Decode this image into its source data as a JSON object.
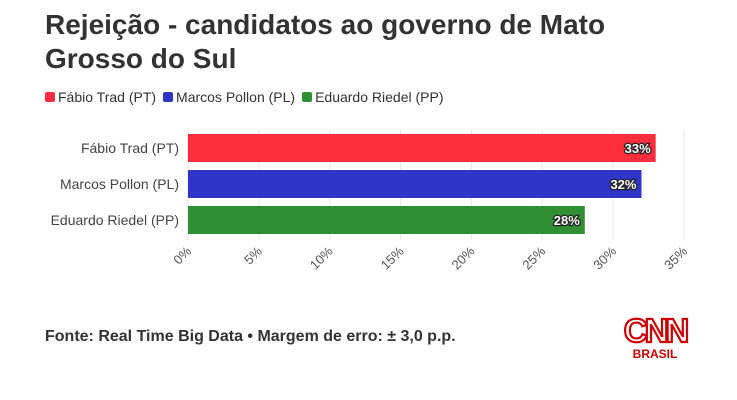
{
  "title": "Rejeição - candidatos ao governo de Mato Grosso do Sul",
  "legend": [
    {
      "label": "Fábio Trad (PT)",
      "color": "#ff2e3e"
    },
    {
      "label": "Marcos Pollon (PL)",
      "color": "#2f33c8"
    },
    {
      "label": "Eduardo Riedel (PP)",
      "color": "#2f8f32"
    }
  ],
  "chart_data": {
    "type": "bar",
    "orientation": "horizontal",
    "categories": [
      "Fábio Trad (PT)",
      "Marcos Pollon (PL)",
      "Eduardo Riedel (PP)"
    ],
    "values": [
      33,
      32,
      28
    ],
    "value_labels": [
      "33%",
      "32%",
      "28%"
    ],
    "colors": [
      "#ff2e3e",
      "#2f33c8",
      "#2f8f32"
    ],
    "xlim": [
      0,
      35
    ],
    "xticks": [
      "0%",
      "5%",
      "10%",
      "15%",
      "20%",
      "25%",
      "30%",
      "35%"
    ],
    "grid": true,
    "legend_position": "top-left"
  },
  "footer": "Fonte: Real Time Big Data • Margem de erro: ± 3,0 p.p.",
  "logo": {
    "brand": "CNN",
    "subtitle": "BRASIL",
    "color": "#cc0000"
  }
}
